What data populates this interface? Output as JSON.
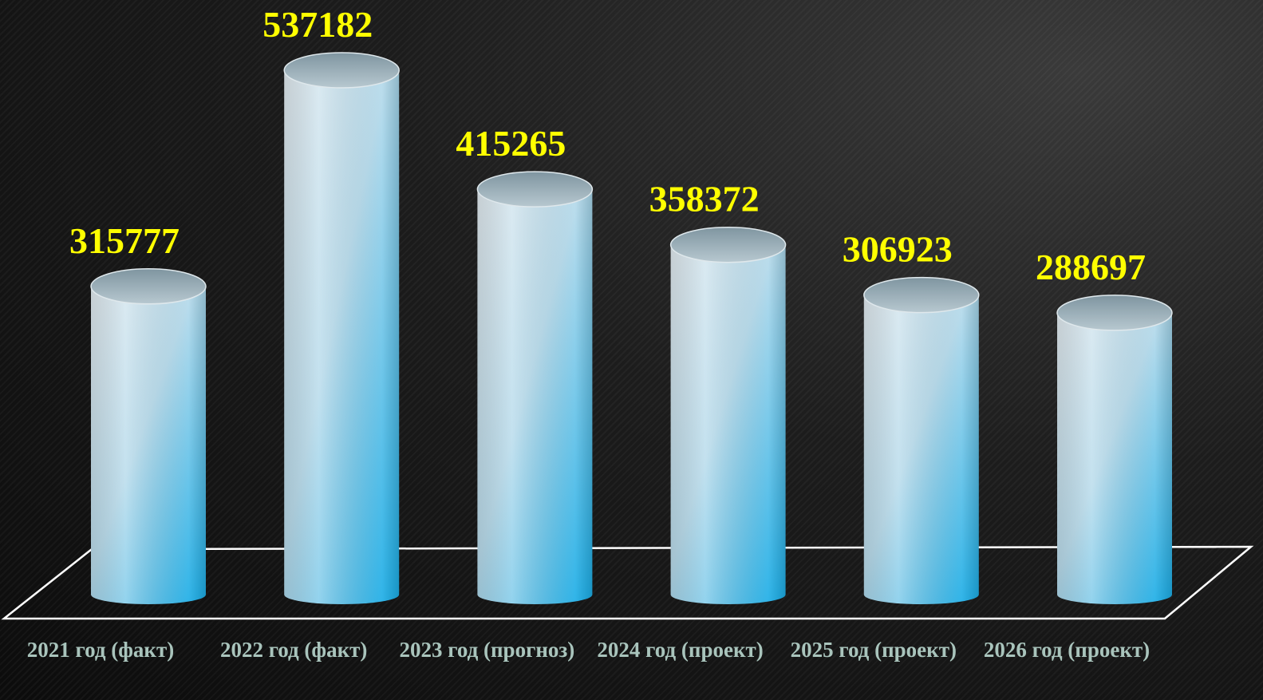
{
  "chart_data": {
    "type": "bar",
    "categories": [
      "2021 год (факт)",
      "2022 год (факт)",
      "2023 год (прогноз)",
      "2024 год (проект)",
      "2025 год (проект)",
      "2026 год (проект)"
    ],
    "values": [
      315777,
      537182,
      415265,
      358372,
      306923,
      288697
    ],
    "color": "#1aaee8"
  }
}
